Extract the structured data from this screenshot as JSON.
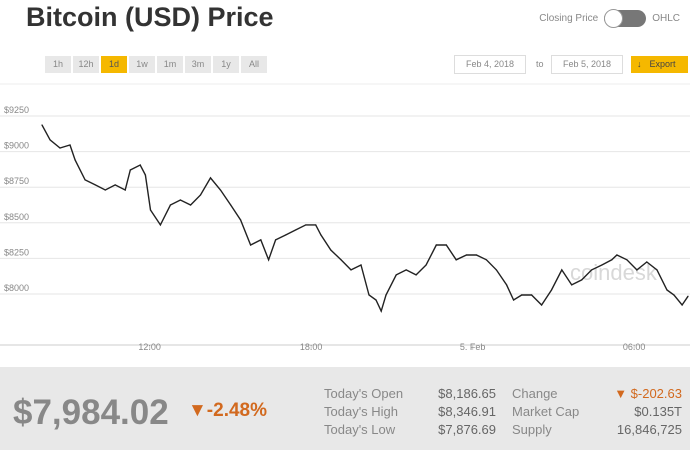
{
  "title": "Bitcoin (USD) Price",
  "toggle": {
    "left": "Closing Price",
    "right": "OHLC"
  },
  "ranges": [
    "1h",
    "12h",
    "1d",
    "1w",
    "1m",
    "3m",
    "1y",
    "All"
  ],
  "active_range": "1d",
  "date_from": "Feb 4, 2018",
  "date_to": "Feb 5, 2018",
  "to_label": "to",
  "export_label": "Export",
  "watermark": "coindesk",
  "summary": {
    "price": "$7,984.02",
    "change_pct": "▼-2.48%",
    "stats": [
      {
        "label": "Today's Open",
        "value": "$8,186.65"
      },
      {
        "label": "Today's High",
        "value": "$8,346.91"
      },
      {
        "label": "Today's Low",
        "value": "$7,876.69"
      }
    ],
    "stats2": [
      {
        "label": "Change",
        "value": "▼ $-202.63"
      },
      {
        "label": "Market Cap",
        "value": "$0.135T"
      },
      {
        "label": "Supply",
        "value": "16,846,725"
      }
    ]
  },
  "colors": {
    "accent": "#f5b800",
    "negative": "#d2691e",
    "line": "#222222"
  },
  "chart_data": {
    "type": "line",
    "title": "Bitcoin (USD) Price",
    "xlabel": "",
    "ylabel": "",
    "xlim": [
      0,
      24
    ],
    "ylim": [
      7750,
      9350
    ],
    "yticks": [
      {
        "v": 8000,
        "label": "$8000"
      },
      {
        "v": 8250,
        "label": "$8250"
      },
      {
        "v": 8500,
        "label": "$8500"
      },
      {
        "v": 8750,
        "label": "$8750"
      },
      {
        "v": 9000,
        "label": "$9000"
      },
      {
        "v": 9250,
        "label": "$9250"
      }
    ],
    "xticks": [
      {
        "v": 4,
        "label": "12:00"
      },
      {
        "v": 10,
        "label": "18:00"
      },
      {
        "v": 16,
        "label": "5. Feb"
      },
      {
        "v": 22,
        "label": "06:00"
      }
    ],
    "x_hours_since_08_00": [
      0,
      0.3,
      0.67,
      1.04,
      1.23,
      1.6,
      1.98,
      2.35,
      2.72,
      3.09,
      3.28,
      3.65,
      3.84,
      4.03,
      4.4,
      4.77,
      5.14,
      5.52,
      5.89,
      6.26,
      6.63,
      7.01,
      7.38,
      7.75,
      8.13,
      8.42,
      8.68,
      9.06,
      9.43,
      9.8,
      10.17,
      10.36,
      10.73,
      11.11,
      11.48,
      11.85,
      12.15,
      12.41,
      12.6,
      12.78,
      13.16,
      13.53,
      13.9,
      14.27,
      14.65,
      15.02,
      15.39,
      15.77,
      16.14,
      16.51,
      16.88,
      17.26,
      17.52,
      17.82,
      18.19,
      18.56,
      18.93,
      19.31,
      19.68,
      20.05,
      20.42,
      20.8,
      21.17,
      21.36,
      21.73,
      22.1,
      22.47,
      22.85,
      23.22,
      23.48,
      23.78,
      24
    ],
    "values": [
      9187,
      9082,
      9025,
      9046,
      8941,
      8801,
      8766,
      8730,
      8766,
      8730,
      8871,
      8906,
      8836,
      8590,
      8485,
      8625,
      8660,
      8625,
      8695,
      8815,
      8730,
      8625,
      8520,
      8344,
      8380,
      8240,
      8380,
      8415,
      8450,
      8485,
      8485,
      8415,
      8309,
      8240,
      8169,
      8204,
      7993,
      7958,
      7880,
      7993,
      8134,
      8169,
      8134,
      8204,
      8344,
      8344,
      8240,
      8274,
      8274,
      8240,
      8169,
      8064,
      7958,
      7993,
      7993,
      7923,
      8028,
      8169,
      8064,
      8099,
      8169,
      8204,
      8240,
      8274,
      8240,
      8169,
      8225,
      8169,
      8028,
      7993,
      7923,
      7984
    ]
  }
}
